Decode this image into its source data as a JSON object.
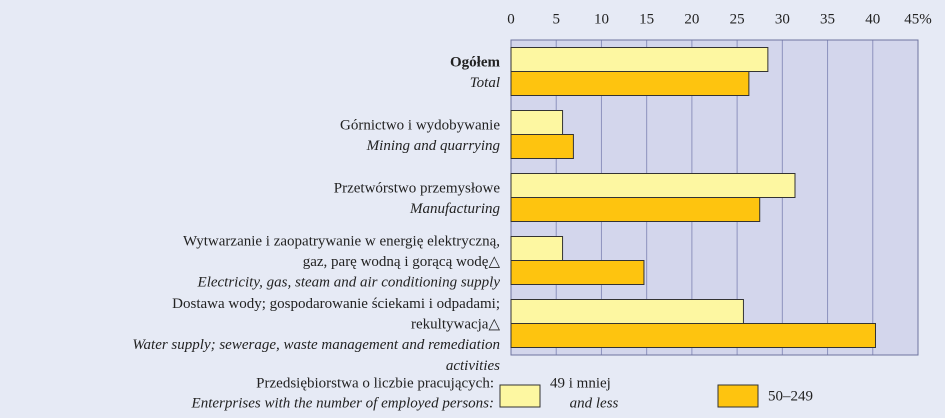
{
  "chart_data": {
    "type": "bar",
    "orientation": "horizontal",
    "categories": [
      {
        "pl": [
          "Ogółem"
        ],
        "en": [
          "Total"
        ]
      },
      {
        "pl": [
          "Górnictwo i wydobywanie"
        ],
        "en": [
          "Mining and quarrying"
        ]
      },
      {
        "pl": [
          "Przetwórstwo przemysłowe"
        ],
        "en": [
          "Manufacturing"
        ]
      },
      {
        "pl": [
          "Wytwarzanie i zaopatrywanie w energię elektryczną,",
          "gaz, parę wodną i gorącą wodę△"
        ],
        "en": [
          "Electricity, gas, steam and air conditioning supply"
        ]
      },
      {
        "pl": [
          "Dostawa wody; gospodarowanie ściekami i odpadami;",
          "rekultywacja△"
        ],
        "en": [
          "Water supply; sewerage, waste management and remediation",
          "activities"
        ]
      }
    ],
    "series": [
      {
        "name": "49 i mniej",
        "name_en": "and less",
        "color": "#fdf7a1",
        "values": [
          28.4,
          5.7,
          31.4,
          5.7,
          25.7
        ]
      },
      {
        "name": "50–249",
        "color": "#fec40f",
        "values": [
          26.3,
          6.9,
          27.5,
          14.7,
          40.3
        ]
      }
    ],
    "legend_title": [
      "Przedsiębiorstwa o liczbie pracujących:",
      "Enterprises with the number of employed persons:"
    ],
    "xlim": [
      0,
      45
    ],
    "xticks": [
      0,
      5,
      10,
      15,
      20,
      25,
      30,
      35,
      40,
      {
        "value": 45,
        "label": "45%"
      }
    ],
    "grid": true
  }
}
